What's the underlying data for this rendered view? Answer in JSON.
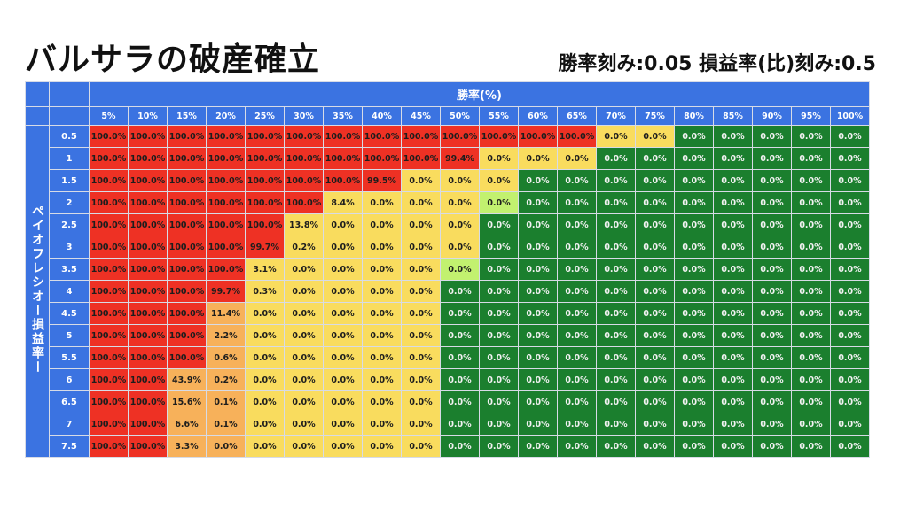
{
  "title": "バルサラの破産確立",
  "subtitle": "勝率刻み:0.05 損益率(比)刻み:0.5",
  "colors": {
    "header": "#3b73e1",
    "red": "#ee3124",
    "orange": "#f7b15a",
    "yellow": "#f9dc5e",
    "lime": "#c2f16f",
    "green": "#1b7f2e"
  },
  "chart_data": {
    "type": "heatmap",
    "xlabel": "勝率(%)",
    "ylabel": "ペイオフレシオー損益率ー",
    "x": [
      "5%",
      "10%",
      "15%",
      "20%",
      "25%",
      "30%",
      "35%",
      "40%",
      "45%",
      "50%",
      "55%",
      "60%",
      "65%",
      "70%",
      "75%",
      "80%",
      "85%",
      "90%",
      "95%",
      "100%"
    ],
    "y": [
      "0.5",
      "1",
      "1.5",
      "2",
      "2.5",
      "3",
      "3.5",
      "4",
      "4.5",
      "5",
      "5.5",
      "6",
      "6.5",
      "7",
      "7.5"
    ],
    "values": [
      [
        "100.0%",
        "100.0%",
        "100.0%",
        "100.0%",
        "100.0%",
        "100.0%",
        "100.0%",
        "100.0%",
        "100.0%",
        "100.0%",
        "100.0%",
        "100.0%",
        "100.0%",
        "0.0%",
        "0.0%",
        "0.0%",
        "0.0%",
        "0.0%",
        "0.0%",
        "0.0%"
      ],
      [
        "100.0%",
        "100.0%",
        "100.0%",
        "100.0%",
        "100.0%",
        "100.0%",
        "100.0%",
        "100.0%",
        "100.0%",
        "99.4%",
        "0.0%",
        "0.0%",
        "0.0%",
        "0.0%",
        "0.0%",
        "0.0%",
        "0.0%",
        "0.0%",
        "0.0%",
        "0.0%"
      ],
      [
        "100.0%",
        "100.0%",
        "100.0%",
        "100.0%",
        "100.0%",
        "100.0%",
        "100.0%",
        "99.5%",
        "0.0%",
        "0.0%",
        "0.0%",
        "0.0%",
        "0.0%",
        "0.0%",
        "0.0%",
        "0.0%",
        "0.0%",
        "0.0%",
        "0.0%",
        "0.0%"
      ],
      [
        "100.0%",
        "100.0%",
        "100.0%",
        "100.0%",
        "100.0%",
        "100.0%",
        "8.4%",
        "0.0%",
        "0.0%",
        "0.0%",
        "0.0%",
        "0.0%",
        "0.0%",
        "0.0%",
        "0.0%",
        "0.0%",
        "0.0%",
        "0.0%",
        "0.0%",
        "0.0%"
      ],
      [
        "100.0%",
        "100.0%",
        "100.0%",
        "100.0%",
        "100.0%",
        "13.8%",
        "0.0%",
        "0.0%",
        "0.0%",
        "0.0%",
        "0.0%",
        "0.0%",
        "0.0%",
        "0.0%",
        "0.0%",
        "0.0%",
        "0.0%",
        "0.0%",
        "0.0%",
        "0.0%"
      ],
      [
        "100.0%",
        "100.0%",
        "100.0%",
        "100.0%",
        "99.7%",
        "0.2%",
        "0.0%",
        "0.0%",
        "0.0%",
        "0.0%",
        "0.0%",
        "0.0%",
        "0.0%",
        "0.0%",
        "0.0%",
        "0.0%",
        "0.0%",
        "0.0%",
        "0.0%",
        "0.0%"
      ],
      [
        "100.0%",
        "100.0%",
        "100.0%",
        "100.0%",
        "3.1%",
        "0.0%",
        "0.0%",
        "0.0%",
        "0.0%",
        "0.0%",
        "0.0%",
        "0.0%",
        "0.0%",
        "0.0%",
        "0.0%",
        "0.0%",
        "0.0%",
        "0.0%",
        "0.0%",
        "0.0%"
      ],
      [
        "100.0%",
        "100.0%",
        "100.0%",
        "99.7%",
        "0.3%",
        "0.0%",
        "0.0%",
        "0.0%",
        "0.0%",
        "0.0%",
        "0.0%",
        "0.0%",
        "0.0%",
        "0.0%",
        "0.0%",
        "0.0%",
        "0.0%",
        "0.0%",
        "0.0%",
        "0.0%"
      ],
      [
        "100.0%",
        "100.0%",
        "100.0%",
        "11.4%",
        "0.0%",
        "0.0%",
        "0.0%",
        "0.0%",
        "0.0%",
        "0.0%",
        "0.0%",
        "0.0%",
        "0.0%",
        "0.0%",
        "0.0%",
        "0.0%",
        "0.0%",
        "0.0%",
        "0.0%",
        "0.0%"
      ],
      [
        "100.0%",
        "100.0%",
        "100.0%",
        "2.2%",
        "0.0%",
        "0.0%",
        "0.0%",
        "0.0%",
        "0.0%",
        "0.0%",
        "0.0%",
        "0.0%",
        "0.0%",
        "0.0%",
        "0.0%",
        "0.0%",
        "0.0%",
        "0.0%",
        "0.0%",
        "0.0%"
      ],
      [
        "100.0%",
        "100.0%",
        "100.0%",
        "0.6%",
        "0.0%",
        "0.0%",
        "0.0%",
        "0.0%",
        "0.0%",
        "0.0%",
        "0.0%",
        "0.0%",
        "0.0%",
        "0.0%",
        "0.0%",
        "0.0%",
        "0.0%",
        "0.0%",
        "0.0%",
        "0.0%"
      ],
      [
        "100.0%",
        "100.0%",
        "43.9%",
        "0.2%",
        "0.0%",
        "0.0%",
        "0.0%",
        "0.0%",
        "0.0%",
        "0.0%",
        "0.0%",
        "0.0%",
        "0.0%",
        "0.0%",
        "0.0%",
        "0.0%",
        "0.0%",
        "0.0%",
        "0.0%",
        "0.0%"
      ],
      [
        "100.0%",
        "100.0%",
        "15.6%",
        "0.1%",
        "0.0%",
        "0.0%",
        "0.0%",
        "0.0%",
        "0.0%",
        "0.0%",
        "0.0%",
        "0.0%",
        "0.0%",
        "0.0%",
        "0.0%",
        "0.0%",
        "0.0%",
        "0.0%",
        "0.0%",
        "0.0%"
      ],
      [
        "100.0%",
        "100.0%",
        "6.6%",
        "0.1%",
        "0.0%",
        "0.0%",
        "0.0%",
        "0.0%",
        "0.0%",
        "0.0%",
        "0.0%",
        "0.0%",
        "0.0%",
        "0.0%",
        "0.0%",
        "0.0%",
        "0.0%",
        "0.0%",
        "0.0%",
        "0.0%"
      ],
      [
        "100.0%",
        "100.0%",
        "3.3%",
        "0.0%",
        "0.0%",
        "0.0%",
        "0.0%",
        "0.0%",
        "0.0%",
        "0.0%",
        "0.0%",
        "0.0%",
        "0.0%",
        "0.0%",
        "0.0%",
        "0.0%",
        "0.0%",
        "0.0%",
        "0.0%",
        "0.0%"
      ]
    ],
    "cell_colors": [
      [
        "red",
        "red",
        "red",
        "red",
        "red",
        "red",
        "red",
        "red",
        "red",
        "red",
        "red",
        "red",
        "red",
        "yellow",
        "yellow",
        "green",
        "green",
        "green",
        "green",
        "green"
      ],
      [
        "red",
        "red",
        "red",
        "red",
        "red",
        "red",
        "red",
        "red",
        "red",
        "red",
        "yellow",
        "yellow",
        "yellow",
        "green",
        "green",
        "green",
        "green",
        "green",
        "green",
        "green"
      ],
      [
        "red",
        "red",
        "red",
        "red",
        "red",
        "red",
        "red",
        "red",
        "yellow",
        "yellow",
        "yellow",
        "green",
        "green",
        "green",
        "green",
        "green",
        "green",
        "green",
        "green",
        "green"
      ],
      [
        "red",
        "red",
        "red",
        "red",
        "red",
        "red",
        "yellow",
        "yellow",
        "yellow",
        "yellow",
        "lime",
        "green",
        "green",
        "green",
        "green",
        "green",
        "green",
        "green",
        "green",
        "green"
      ],
      [
        "red",
        "red",
        "red",
        "red",
        "red",
        "yellow",
        "yellow",
        "yellow",
        "yellow",
        "yellow",
        "green",
        "green",
        "green",
        "green",
        "green",
        "green",
        "green",
        "green",
        "green",
        "green"
      ],
      [
        "red",
        "red",
        "red",
        "red",
        "red",
        "yellow",
        "yellow",
        "yellow",
        "yellow",
        "yellow",
        "green",
        "green",
        "green",
        "green",
        "green",
        "green",
        "green",
        "green",
        "green",
        "green"
      ],
      [
        "red",
        "red",
        "red",
        "red",
        "yellow",
        "yellow",
        "yellow",
        "yellow",
        "yellow",
        "lime",
        "green",
        "green",
        "green",
        "green",
        "green",
        "green",
        "green",
        "green",
        "green",
        "green"
      ],
      [
        "red",
        "red",
        "red",
        "red",
        "yellow",
        "yellow",
        "yellow",
        "yellow",
        "yellow",
        "green",
        "green",
        "green",
        "green",
        "green",
        "green",
        "green",
        "green",
        "green",
        "green",
        "green"
      ],
      [
        "red",
        "red",
        "red",
        "orange",
        "yellow",
        "yellow",
        "yellow",
        "yellow",
        "yellow",
        "green",
        "green",
        "green",
        "green",
        "green",
        "green",
        "green",
        "green",
        "green",
        "green",
        "green"
      ],
      [
        "red",
        "red",
        "red",
        "orange",
        "yellow",
        "yellow",
        "yellow",
        "yellow",
        "yellow",
        "green",
        "green",
        "green",
        "green",
        "green",
        "green",
        "green",
        "green",
        "green",
        "green",
        "green"
      ],
      [
        "red",
        "red",
        "red",
        "orange",
        "yellow",
        "yellow",
        "yellow",
        "yellow",
        "yellow",
        "green",
        "green",
        "green",
        "green",
        "green",
        "green",
        "green",
        "green",
        "green",
        "green",
        "green"
      ],
      [
        "red",
        "red",
        "orange",
        "orange",
        "yellow",
        "yellow",
        "yellow",
        "yellow",
        "yellow",
        "green",
        "green",
        "green",
        "green",
        "green",
        "green",
        "green",
        "green",
        "green",
        "green",
        "green"
      ],
      [
        "red",
        "red",
        "orange",
        "orange",
        "yellow",
        "yellow",
        "yellow",
        "yellow",
        "yellow",
        "green",
        "green",
        "green",
        "green",
        "green",
        "green",
        "green",
        "green",
        "green",
        "green",
        "green"
      ],
      [
        "red",
        "red",
        "orange",
        "orange",
        "yellow",
        "yellow",
        "yellow",
        "yellow",
        "yellow",
        "green",
        "green",
        "green",
        "green",
        "green",
        "green",
        "green",
        "green",
        "green",
        "green",
        "green"
      ],
      [
        "red",
        "red",
        "orange",
        "orange",
        "yellow",
        "yellow",
        "yellow",
        "yellow",
        "yellow",
        "green",
        "green",
        "green",
        "green",
        "green",
        "green",
        "green",
        "green",
        "green",
        "green",
        "green"
      ]
    ],
    "legend": "none",
    "grid": true
  }
}
